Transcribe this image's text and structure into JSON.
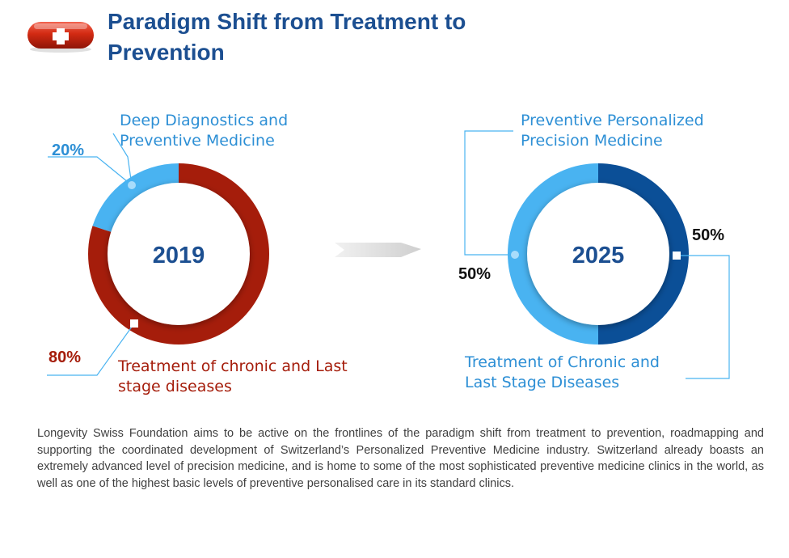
{
  "header": {
    "title_line1": "Paradigm Shift from Treatment to",
    "title_line2": "Prevention",
    "logo_icon": "swiss-cross-pill-icon"
  },
  "colors": {
    "title": "#1c4f91",
    "dark_red": "#a51d0b",
    "light_blue": "#49b3f1",
    "dark_blue": "#0b4f97",
    "light_blue_text": "#2d8fd5",
    "arrow": "#d9d9d9",
    "text": "#404040"
  },
  "chart_data": [
    {
      "type": "pie",
      "style": "donut",
      "center_label": "2019",
      "slices": [
        {
          "label": "Deep Diagnostics and Preventive Medicine",
          "label_line1": "Deep Diagnostics and",
          "label_line2": "Preventive Medicine",
          "value": 20,
          "value_label": "20%",
          "color": "#49b3f1"
        },
        {
          "label": "Treatment of chronic and Last stage diseases",
          "label_line1": "Treatment of chronic and Last",
          "label_line2": "stage diseases",
          "value": 80,
          "value_label": "80%",
          "color": "#a51d0b"
        }
      ]
    },
    {
      "type": "pie",
      "style": "donut",
      "center_label": "2025",
      "slices": [
        {
          "label": "Preventive Personalized Precision Medicine",
          "label_line1": "Preventive Personalized",
          "label_line2": "Precision Medicine",
          "value": 50,
          "value_label": "50%",
          "color": "#49b3f1"
        },
        {
          "label": "Treatment of Chronic and Last Stage Diseases",
          "label_line1": "Treatment of Chronic and",
          "label_line2": "Last Stage Diseases",
          "value": 50,
          "value_label": "50%",
          "color": "#0b4f97"
        }
      ]
    }
  ],
  "body": {
    "paragraph": "Longevity Swiss Foundation aims to be active on the frontlines of the paradigm shift from treatment to prevention, roadmapping and supporting the coordinated development of Switzerland’s Personalized Preventive Medicine industry. Switzerland already boasts an extremely advanced level of precision medicine, and is home to some of the most sophisticated preventive medicine clinics in the world, as well as one of the highest basic levels of preventive personalised care in its standard clinics."
  }
}
